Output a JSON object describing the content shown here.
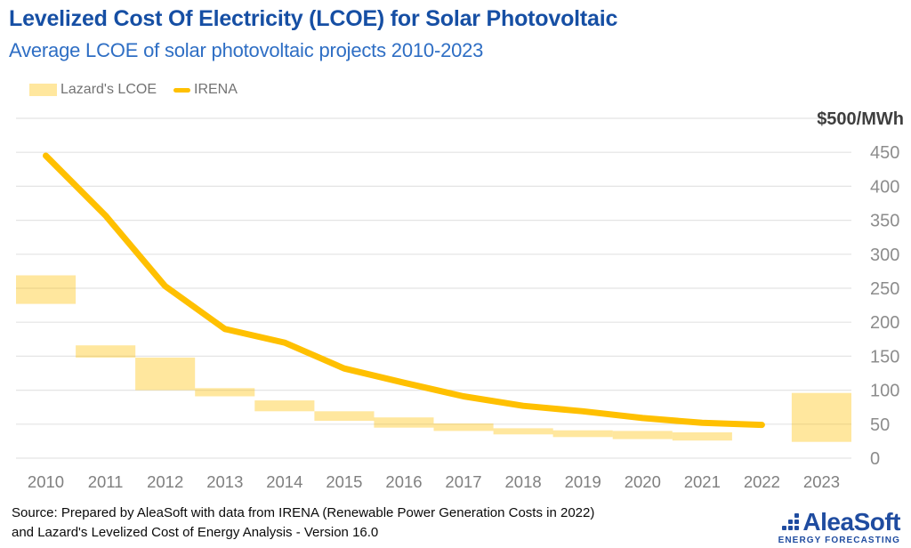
{
  "header": {
    "title": "Levelized Cost Of Electricity (LCOE) for Solar Photovoltaic",
    "subtitle": "Average LCOE of solar photovoltaic projects 2010-2023"
  },
  "legend": {
    "bar_label": "Lazard's LCOE",
    "line_label": "IRENA"
  },
  "chart_data": {
    "type": "combo-bar-range-line",
    "categories": [
      "2010",
      "2011",
      "2012",
      "2013",
      "2014",
      "2015",
      "2016",
      "2017",
      "2018",
      "2019",
      "2020",
      "2021",
      "2022",
      "2023"
    ],
    "series": [
      {
        "name": "Lazard's LCOE",
        "type": "bar-range",
        "color": "#FFC000",
        "fill_opacity": 0.38,
        "ranges": [
          [
            227,
            269
          ],
          [
            148,
            166
          ],
          [
            100,
            148
          ],
          [
            91,
            103
          ],
          [
            69,
            85
          ],
          [
            55,
            69
          ],
          [
            45,
            60
          ],
          [
            40,
            51
          ],
          [
            35,
            44
          ],
          [
            31,
            41
          ],
          [
            28,
            40
          ],
          [
            26,
            38
          ],
          null,
          [
            24,
            96
          ]
        ]
      },
      {
        "name": "IRENA",
        "type": "line",
        "color": "#FFC000",
        "stroke_width": 7,
        "values": [
          445,
          357,
          253,
          190,
          170,
          132,
          111,
          91,
          77,
          69,
          59,
          52,
          49,
          null
        ]
      }
    ],
    "ylim": [
      0,
      500
    ],
    "ytick_step": 50,
    "yticks": [
      0,
      50,
      100,
      150,
      200,
      250,
      300,
      350,
      400,
      450
    ],
    "y_unit_label": "$500/MWh",
    "grid": true,
    "legend_position": "top-left"
  },
  "footer": {
    "line1": "Source: Prepared by AleaSoft with data from IRENA (Renewable Power Generation Costs in 2022)",
    "line2": "and Lazard's Levelized Cost of Energy Analysis - Version 16.0"
  },
  "logo": {
    "name": "AleaSoft",
    "tagline": "ENERGY FORECASTING"
  },
  "colors": {
    "title_blue": "#164FA4",
    "subtitle_blue": "#2E6EC4",
    "accent_gold": "#FFC000",
    "logo_blue": "#1F4CA0",
    "axis_text": "#8C8C8C",
    "x_axis_text": "#7F7F7F",
    "grid": "#E4E4E4",
    "unit_label_text": "#3F3F3F",
    "legend_text": "#737373",
    "footer_text": "#0A0A0A"
  }
}
